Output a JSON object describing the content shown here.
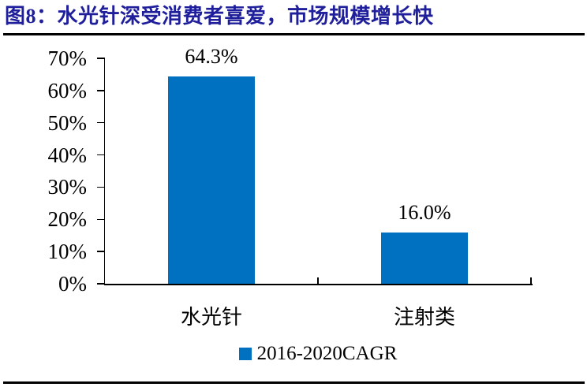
{
  "header": {
    "title": "图8：水光针深受消费者喜爱，市场规模增长快"
  },
  "colors": {
    "title": "#1F1F9B",
    "bar": "#0070C0",
    "axis": "#000000",
    "rule": "#000000"
  },
  "legend": {
    "label": "2016-2020CAGR",
    "swatch_color": "#0070C0"
  },
  "chart_data": {
    "type": "bar",
    "title": "图8：水光针深受消费者喜爱，市场规模增长快",
    "categories": [
      "水光针",
      "注射类"
    ],
    "series": [
      {
        "name": "2016-2020CAGR",
        "values": [
          64.3,
          16.0
        ]
      }
    ],
    "value_labels": [
      "64.3%",
      "16.0%"
    ],
    "ytick_labels": [
      "0%",
      "10%",
      "20%",
      "30%",
      "40%",
      "50%",
      "60%",
      "70%"
    ],
    "ylim": [
      0,
      70
    ],
    "xlabel": "",
    "ylabel": "",
    "grid": false,
    "legend_position": "bottom"
  }
}
